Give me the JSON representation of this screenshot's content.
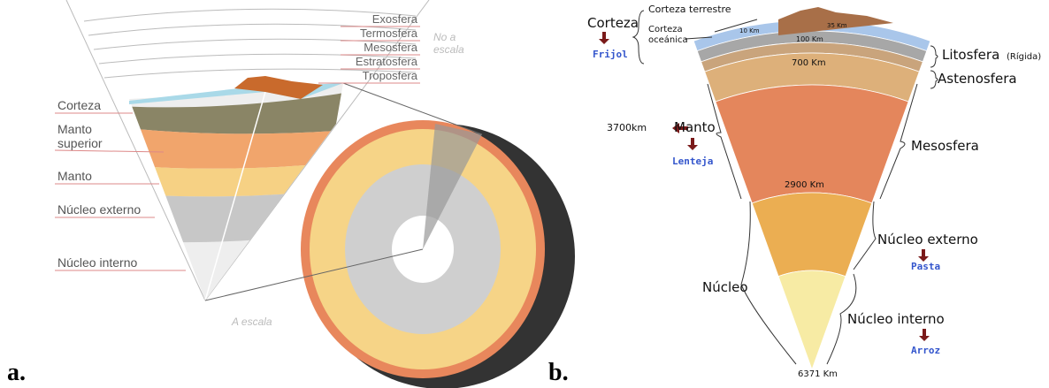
{
  "panel_a": {
    "label": "a.",
    "atmosphere_layers": [
      "Exosfera",
      "Termosfera",
      "Mesosfera",
      "Estratosfera",
      "Troposfera"
    ],
    "note_top": [
      "No a",
      "escala"
    ],
    "layers": [
      "Corteza",
      "Manto",
      "superior",
      "Manto",
      "Núcleo externo",
      "Núcleo interno"
    ],
    "note_bottom": "A escala"
  },
  "panel_b": {
    "label": "b.",
    "crust": {
      "title": "Corteza",
      "food": "Frijol",
      "continental": "Corteza terrestre",
      "oceanic": [
        "Corteza",
        "oceánica"
      ]
    },
    "depths": {
      "continental": "35 Km",
      "oceanic": "10 Km",
      "lithosphere": "100 Km",
      "asthenosphere": "700 Km",
      "mantle": "2900 Km",
      "center": "6371 Km"
    },
    "lithosphere": {
      "name": "Litosfera",
      "note": "(Rígida)"
    },
    "asthenosphere": "Astenosfera",
    "mantle": {
      "thickness": "3700km",
      "name": "Manto",
      "food": "Lenteja"
    },
    "mesosphere": "Mesosfera",
    "outer_core": {
      "name": "Núcleo externo",
      "food": "Pasta"
    },
    "core": "Núcleo",
    "inner_core": {
      "name": "Núcleo interno",
      "food": "Arroz"
    }
  }
}
